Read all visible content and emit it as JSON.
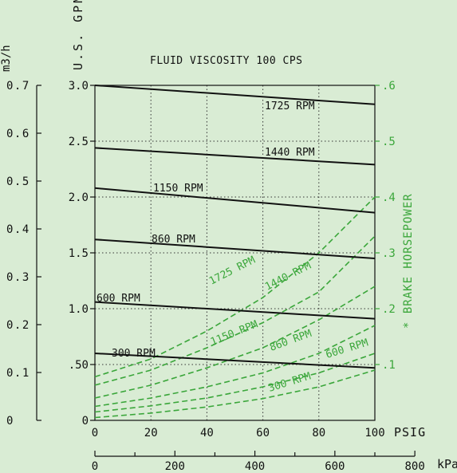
{
  "chart_data": {
    "type": "line",
    "title": "FLUID VISCOSITY 100 CPS",
    "x_axis": {
      "label": "PSIG",
      "range": [
        0,
        100
      ],
      "ticks": [
        "0",
        "20",
        "40",
        "60",
        "80",
        "100"
      ]
    },
    "x2_axis": {
      "label": "kPa",
      "range": [
        0,
        700
      ],
      "ticks": [
        "0",
        "200",
        "400",
        "600",
        "800"
      ]
    },
    "y_left_axis": {
      "label": "U.S. GPM",
      "range": [
        0,
        3
      ],
      "ticks": [
        "0",
        ".50",
        "1.0",
        "1.5",
        "2.0",
        "2.5",
        "3.0"
      ]
    },
    "y_far_left_axis": {
      "label": "m3/h",
      "range": [
        0,
        0.7
      ],
      "ticks": [
        "0",
        "0.1",
        "0.2",
        "0.3",
        "0.4",
        "0.5",
        "0.6",
        "0.7"
      ]
    },
    "y_right_axis": {
      "label": "* BRAKE HORSEPOWER",
      "range": [
        0,
        0.6
      ],
      "ticks": [
        ".1",
        ".2",
        ".3",
        ".4",
        ".5",
        ".6"
      ]
    },
    "flow_series": [
      {
        "name": "1725 RPM",
        "x": [
          0,
          100
        ],
        "y": [
          3.0,
          2.83
        ]
      },
      {
        "name": "1440 RPM",
        "x": [
          0,
          100
        ],
        "y": [
          2.44,
          2.29
        ]
      },
      {
        "name": "1150 RPM",
        "x": [
          0,
          100
        ],
        "y": [
          2.08,
          1.86
        ]
      },
      {
        "name": "860 RPM",
        "x": [
          0,
          100
        ],
        "y": [
          1.62,
          1.45
        ]
      },
      {
        "name": "600 RPM",
        "x": [
          0,
          100
        ],
        "y": [
          1.06,
          0.91
        ]
      },
      {
        "name": "300 RPM",
        "x": [
          0,
          100
        ],
        "y": [
          0.6,
          0.47
        ]
      }
    ],
    "horsepower_series": [
      {
        "name": "1725 RPM",
        "x": [
          0,
          20,
          40,
          60,
          80,
          100
        ],
        "y": [
          0.078,
          0.11,
          0.16,
          0.22,
          0.3,
          0.4
        ]
      },
      {
        "name": "1440 RPM",
        "x": [
          0,
          20,
          40,
          60,
          80,
          100
        ],
        "y": [
          0.063,
          0.09,
          0.13,
          0.175,
          0.23,
          0.33
        ]
      },
      {
        "name": "1150 RPM",
        "x": [
          0,
          20,
          40,
          60,
          80,
          100
        ],
        "y": [
          0.04,
          0.063,
          0.094,
          0.13,
          0.18,
          0.24
        ]
      },
      {
        "name": "860 RPM",
        "x": [
          0,
          20,
          40,
          60,
          80,
          100
        ],
        "y": [
          0.025,
          0.04,
          0.06,
          0.085,
          0.12,
          0.17
        ]
      },
      {
        "name": "600 RPM",
        "x": [
          0,
          20,
          40,
          60,
          80,
          100
        ],
        "y": [
          0.015,
          0.026,
          0.04,
          0.06,
          0.085,
          0.12
        ]
      },
      {
        "name": "300 RPM",
        "x": [
          0,
          20,
          40,
          60,
          80,
          100
        ],
        "y": [
          0.005,
          0.013,
          0.024,
          0.039,
          0.06,
          0.09
        ]
      }
    ],
    "grid": true,
    "colors": {
      "flow": "#111111",
      "horsepower": "#3aa63a",
      "background": "#d9ecd4",
      "grid": "#333333"
    }
  }
}
